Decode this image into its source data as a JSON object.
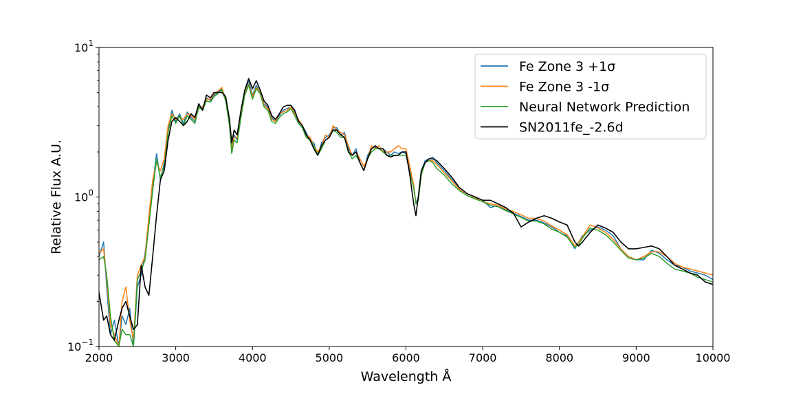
{
  "chart_data": {
    "type": "line",
    "title": "",
    "xlabel": "Wavelength Å",
    "ylabel": "Relative Flux A.U.",
    "xscale": "linear",
    "yscale": "log",
    "xlim": [
      2000,
      10000
    ],
    "ylim": [
      0.1,
      10
    ],
    "x_ticks": [
      2000,
      3000,
      4000,
      5000,
      6000,
      7000,
      8000,
      9000,
      10000
    ],
    "x_tick_labels": [
      "2000",
      "3000",
      "4000",
      "5000",
      "6000",
      "7000",
      "8000",
      "9000",
      "10000"
    ],
    "y_ticks": [
      0.1,
      1,
      10
    ],
    "grid": false,
    "legend": "upper-right",
    "series": [
      {
        "name": "Fe Zone 3 +1σ",
        "color": "#1f77b4",
        "x": [
          2000,
          2060,
          2100,
          2150,
          2200,
          2260,
          2300,
          2350,
          2400,
          2450,
          2500,
          2550,
          2600,
          2650,
          2700,
          2750,
          2800,
          2850,
          2900,
          2950,
          3000,
          3050,
          3100,
          3150,
          3200,
          3250,
          3300,
          3350,
          3400,
          3450,
          3500,
          3550,
          3600,
          3650,
          3700,
          3730,
          3760,
          3800,
          3850,
          3900,
          3950,
          4000,
          4050,
          4100,
          4150,
          4200,
          4250,
          4300,
          4350,
          4400,
          4450,
          4500,
          4550,
          4600,
          4650,
          4700,
          4750,
          4800,
          4850,
          4900,
          4950,
          5000,
          5050,
          5100,
          5150,
          5200,
          5250,
          5300,
          5350,
          5400,
          5450,
          5500,
          5550,
          5600,
          5650,
          5700,
          5750,
          5800,
          5850,
          5900,
          5950,
          6000,
          6050,
          6100,
          6130,
          6160,
          6200,
          6250,
          6300,
          6350,
          6400,
          6500,
          6600,
          6700,
          6800,
          6900,
          7000,
          7100,
          7200,
          7300,
          7400,
          7500,
          7600,
          7700,
          7800,
          7900,
          8000,
          8100,
          8200,
          8250,
          8300,
          8400,
          8500,
          8600,
          8700,
          8800,
          8900,
          9000,
          9100,
          9200,
          9300,
          9400,
          9500,
          9600,
          9700,
          9800,
          9900,
          10000
        ],
        "y": [
          0.4,
          0.5,
          0.25,
          0.12,
          0.15,
          0.1,
          0.16,
          0.14,
          0.18,
          0.1,
          0.25,
          0.3,
          0.42,
          0.7,
          1.2,
          1.95,
          1.3,
          1.7,
          2.8,
          3.8,
          3.2,
          3.6,
          3.1,
          3.7,
          3.4,
          3.2,
          4.1,
          3.9,
          4.6,
          4.4,
          4.8,
          5.0,
          5.3,
          4.6,
          3.2,
          2.0,
          2.6,
          2.4,
          3.6,
          5.0,
          6.0,
          4.8,
          5.6,
          5.0,
          4.2,
          4.0,
          3.4,
          3.2,
          3.5,
          3.8,
          3.9,
          4.0,
          3.7,
          3.2,
          3.0,
          2.7,
          2.4,
          2.3,
          1.9,
          2.3,
          2.5,
          2.6,
          2.9,
          2.9,
          2.6,
          2.7,
          2.1,
          1.9,
          2.1,
          1.7,
          1.5,
          1.9,
          2.1,
          2.15,
          2.1,
          2.1,
          2.0,
          1.9,
          2.0,
          1.95,
          2.0,
          1.95,
          1.5,
          1.2,
          0.9,
          1.0,
          1.5,
          1.75,
          1.8,
          1.85,
          1.7,
          1.5,
          1.3,
          1.15,
          1.05,
          1.0,
          0.95,
          0.85,
          0.88,
          0.82,
          0.78,
          0.74,
          0.7,
          0.7,
          0.67,
          0.63,
          0.58,
          0.55,
          0.45,
          0.5,
          0.55,
          0.6,
          0.63,
          0.6,
          0.55,
          0.45,
          0.4,
          0.38,
          0.38,
          0.44,
          0.42,
          0.38,
          0.35,
          0.34,
          0.32,
          0.31,
          0.3,
          0.28
        ]
      },
      {
        "name": "Fe Zone 3 -1σ",
        "color": "#ff7f0e",
        "x": [
          2000,
          2060,
          2100,
          2150,
          2200,
          2260,
          2300,
          2350,
          2400,
          2450,
          2500,
          2550,
          2600,
          2650,
          2700,
          2750,
          2800,
          2850,
          2900,
          2950,
          3000,
          3050,
          3100,
          3150,
          3200,
          3250,
          3300,
          3350,
          3400,
          3450,
          3500,
          3550,
          3600,
          3650,
          3700,
          3730,
          3760,
          3800,
          3850,
          3900,
          3950,
          4000,
          4050,
          4100,
          4150,
          4200,
          4250,
          4300,
          4350,
          4400,
          4450,
          4500,
          4550,
          4600,
          4650,
          4700,
          4750,
          4800,
          4850,
          4900,
          4950,
          5000,
          5050,
          5100,
          5150,
          5200,
          5250,
          5300,
          5350,
          5400,
          5450,
          5500,
          5550,
          5600,
          5650,
          5700,
          5750,
          5800,
          5850,
          5900,
          5950,
          6000,
          6050,
          6100,
          6130,
          6160,
          6200,
          6250,
          6300,
          6350,
          6400,
          6500,
          6600,
          6700,
          6800,
          6900,
          7000,
          7100,
          7200,
          7300,
          7400,
          7500,
          7600,
          7700,
          7800,
          7900,
          8000,
          8100,
          8200,
          8250,
          8300,
          8400,
          8500,
          8600,
          8700,
          8800,
          8900,
          9000,
          9100,
          9200,
          9300,
          9400,
          9500,
          9600,
          9700,
          9800,
          9900,
          10000
        ],
        "y": [
          0.42,
          0.45,
          0.28,
          0.14,
          0.12,
          0.1,
          0.2,
          0.25,
          0.15,
          0.11,
          0.3,
          0.35,
          0.4,
          0.75,
          1.3,
          1.7,
          1.5,
          1.8,
          3.0,
          3.6,
          3.3,
          3.4,
          3.3,
          3.6,
          3.5,
          3.3,
          3.9,
          4.0,
          4.5,
          4.5,
          4.9,
          5.1,
          5.4,
          4.5,
          3.1,
          2.1,
          2.5,
          2.5,
          3.5,
          4.9,
          5.7,
          4.7,
          5.4,
          5.1,
          4.1,
          3.9,
          3.3,
          3.2,
          3.6,
          3.7,
          3.8,
          4.0,
          3.6,
          3.3,
          3.0,
          2.6,
          2.5,
          2.2,
          2.0,
          2.2,
          2.6,
          2.5,
          3.0,
          2.8,
          2.7,
          2.6,
          2.2,
          1.9,
          2.0,
          1.8,
          1.6,
          1.8,
          2.2,
          2.1,
          2.2,
          2.0,
          2.0,
          2.0,
          2.1,
          2.2,
          2.1,
          2.1,
          1.6,
          1.2,
          0.9,
          0.95,
          1.4,
          1.7,
          1.75,
          1.75,
          1.65,
          1.45,
          1.28,
          1.12,
          1.02,
          0.98,
          0.93,
          0.9,
          0.88,
          0.83,
          0.8,
          0.76,
          0.72,
          0.72,
          0.69,
          0.64,
          0.6,
          0.56,
          0.47,
          0.5,
          0.54,
          0.65,
          0.62,
          0.58,
          0.52,
          0.45,
          0.4,
          0.38,
          0.4,
          0.43,
          0.43,
          0.4,
          0.36,
          0.34,
          0.33,
          0.32,
          0.31,
          0.3
        ]
      },
      {
        "name": "Neural Network Prediction",
        "color": "#2ca02c",
        "x": [
          2000,
          2060,
          2100,
          2150,
          2200,
          2260,
          2300,
          2350,
          2400,
          2450,
          2500,
          2550,
          2600,
          2650,
          2700,
          2750,
          2800,
          2850,
          2900,
          2950,
          3000,
          3050,
          3100,
          3150,
          3200,
          3250,
          3300,
          3350,
          3400,
          3450,
          3500,
          3550,
          3600,
          3650,
          3700,
          3730,
          3760,
          3800,
          3850,
          3900,
          3950,
          4000,
          4050,
          4100,
          4150,
          4200,
          4250,
          4300,
          4350,
          4400,
          4450,
          4500,
          4550,
          4600,
          4650,
          4700,
          4750,
          4800,
          4850,
          4900,
          4950,
          5000,
          5050,
          5100,
          5150,
          5200,
          5250,
          5300,
          5350,
          5400,
          5450,
          5500,
          5550,
          5600,
          5650,
          5700,
          5750,
          5800,
          5850,
          5900,
          5950,
          6000,
          6050,
          6100,
          6130,
          6160,
          6200,
          6250,
          6300,
          6350,
          6400,
          6500,
          6600,
          6700,
          6800,
          6900,
          7000,
          7100,
          7200,
          7300,
          7400,
          7500,
          7600,
          7700,
          7800,
          7900,
          8000,
          8100,
          8200,
          8250,
          8300,
          8400,
          8500,
          8600,
          8700,
          8800,
          8900,
          9000,
          9100,
          9200,
          9300,
          9400,
          9500,
          9600,
          9700,
          9800,
          9900,
          10000
        ],
        "y": [
          0.38,
          0.4,
          0.3,
          0.16,
          0.11,
          0.1,
          0.13,
          0.12,
          0.12,
          0.1,
          0.28,
          0.32,
          0.38,
          0.65,
          1.1,
          1.8,
          1.35,
          1.6,
          2.7,
          3.5,
          3.1,
          3.5,
          3.0,
          3.5,
          3.3,
          3.1,
          4.0,
          3.8,
          4.4,
          4.3,
          4.7,
          4.9,
          5.2,
          4.4,
          3.0,
          1.95,
          2.4,
          2.3,
          3.4,
          4.8,
          5.6,
          4.5,
          5.3,
          4.9,
          4.0,
          3.8,
          3.2,
          3.1,
          3.4,
          3.6,
          3.7,
          3.9,
          3.5,
          3.1,
          2.9,
          2.5,
          2.4,
          2.2,
          1.9,
          2.1,
          2.4,
          2.5,
          2.8,
          2.7,
          2.5,
          2.5,
          2.0,
          1.8,
          1.9,
          1.7,
          1.5,
          1.8,
          2.0,
          2.1,
          2.1,
          2.0,
          1.9,
          1.9,
          1.9,
          1.9,
          1.9,
          1.9,
          1.45,
          1.15,
          0.9,
          0.95,
          1.4,
          1.7,
          1.75,
          1.7,
          1.55,
          1.4,
          1.22,
          1.1,
          1.02,
          0.97,
          0.93,
          0.88,
          0.86,
          0.81,
          0.77,
          0.73,
          0.69,
          0.69,
          0.66,
          0.61,
          0.58,
          0.54,
          0.46,
          0.48,
          0.53,
          0.62,
          0.6,
          0.56,
          0.5,
          0.44,
          0.39,
          0.38,
          0.39,
          0.42,
          0.4,
          0.36,
          0.33,
          0.32,
          0.31,
          0.29,
          0.28,
          0.27
        ]
      },
      {
        "name": "SN2011fe_-2.6d",
        "color": "#000000",
        "x": [
          2000,
          2060,
          2100,
          2150,
          2200,
          2260,
          2300,
          2350,
          2400,
          2450,
          2500,
          2550,
          2600,
          2650,
          2700,
          2750,
          2800,
          2850,
          2900,
          2950,
          3000,
          3050,
          3100,
          3150,
          3200,
          3250,
          3300,
          3350,
          3400,
          3450,
          3500,
          3550,
          3600,
          3650,
          3700,
          3730,
          3760,
          3800,
          3850,
          3900,
          3950,
          4000,
          4050,
          4100,
          4150,
          4200,
          4250,
          4300,
          4350,
          4400,
          4450,
          4500,
          4550,
          4600,
          4650,
          4700,
          4750,
          4800,
          4850,
          4900,
          4950,
          5000,
          5050,
          5100,
          5150,
          5200,
          5250,
          5300,
          5350,
          5400,
          5450,
          5500,
          5550,
          5600,
          5650,
          5700,
          5750,
          5800,
          5850,
          5900,
          5950,
          6000,
          6050,
          6100,
          6130,
          6160,
          6200,
          6250,
          6300,
          6350,
          6400,
          6500,
          6600,
          6700,
          6800,
          6900,
          7000,
          7100,
          7200,
          7300,
          7400,
          7500,
          7600,
          7700,
          7800,
          7900,
          8000,
          8100,
          8200,
          8250,
          8300,
          8400,
          8500,
          8600,
          8700,
          8800,
          8900,
          9000,
          9100,
          9200,
          9300,
          9400,
          9500,
          9600,
          9700,
          9800,
          9900,
          10000
        ],
        "y": [
          0.23,
          0.15,
          0.16,
          0.12,
          0.11,
          0.15,
          0.18,
          0.2,
          0.16,
          0.13,
          0.14,
          0.35,
          0.25,
          0.22,
          0.4,
          0.75,
          1.3,
          1.5,
          2.4,
          3.2,
          3.4,
          3.2,
          3.0,
          3.2,
          3.6,
          3.4,
          4.2,
          3.8,
          4.8,
          4.6,
          5.0,
          5.0,
          5.0,
          4.7,
          3.3,
          2.3,
          2.8,
          2.6,
          3.8,
          5.2,
          6.2,
          5.3,
          6.0,
          5.2,
          4.4,
          4.1,
          3.5,
          3.3,
          3.6,
          4.0,
          4.1,
          4.1,
          3.8,
          3.2,
          3.0,
          2.6,
          2.4,
          2.1,
          1.9,
          2.2,
          2.4,
          2.5,
          2.8,
          2.8,
          2.6,
          2.5,
          2.0,
          1.9,
          2.0,
          1.7,
          1.5,
          1.8,
          2.1,
          2.2,
          2.1,
          2.1,
          1.9,
          1.85,
          1.9,
          1.9,
          2.0,
          2.0,
          1.4,
          0.9,
          0.75,
          1.0,
          1.5,
          1.7,
          1.8,
          1.8,
          1.75,
          1.55,
          1.35,
          1.15,
          1.05,
          1.0,
          0.95,
          0.95,
          0.9,
          0.85,
          0.78,
          0.63,
          0.68,
          0.72,
          0.75,
          0.72,
          0.68,
          0.65,
          0.5,
          0.47,
          0.5,
          0.58,
          0.65,
          0.62,
          0.58,
          0.5,
          0.45,
          0.45,
          0.46,
          0.47,
          0.45,
          0.4,
          0.35,
          0.33,
          0.31,
          0.3,
          0.27,
          0.26
        ]
      }
    ]
  }
}
